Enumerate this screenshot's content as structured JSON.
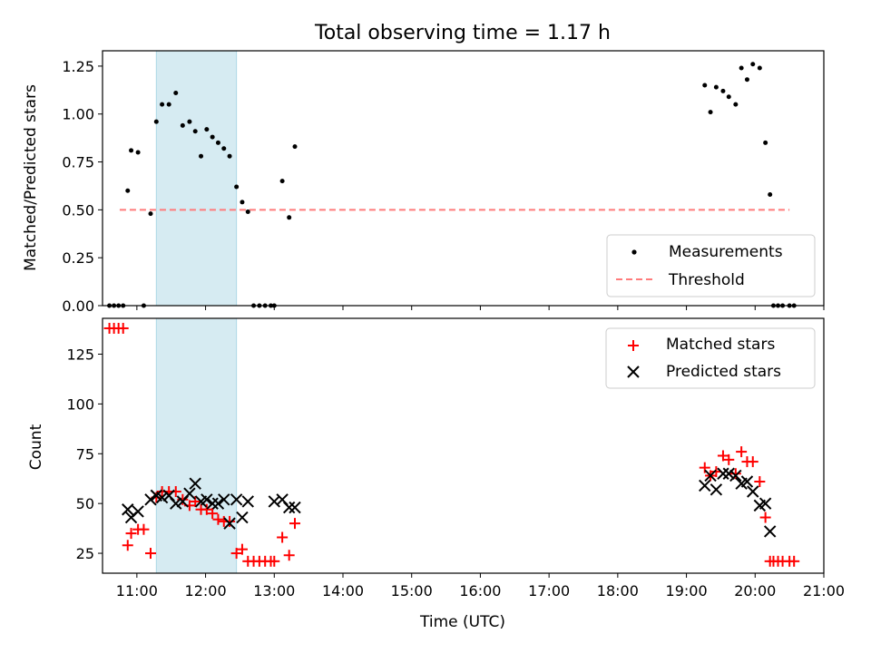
{
  "chart_data": [
    {
      "type": "scatter",
      "title": "Total observing time = 1.17 h",
      "ylabel": "Matched/Predicted stars",
      "xlim": [
        "10:30",
        "21:00"
      ],
      "ylim": [
        0,
        1.33
      ],
      "yticks": [
        "0.00",
        "0.25",
        "0.50",
        "0.75",
        "1.00",
        "1.25"
      ],
      "shaded_interval": [
        "11:17",
        "12:27"
      ],
      "legend_position": "lower-right",
      "series": [
        {
          "name": "Measurements",
          "marker": "dot",
          "color": "#000000",
          "x": [
            "10:36",
            "10:40",
            "10:44",
            "10:48",
            "10:52",
            "10:55",
            "11:01",
            "11:06",
            "11:12",
            "11:17",
            "11:22",
            "11:28",
            "11:34",
            "11:40",
            "11:46",
            "11:51",
            "11:56",
            "12:01",
            "12:06",
            "12:11",
            "12:16",
            "12:21",
            "12:27",
            "12:32",
            "12:37",
            "12:42",
            "12:47",
            "12:52",
            "12:57",
            "13:00",
            "13:07",
            "13:13",
            "13:18",
            "19:16",
            "19:21",
            "19:26",
            "19:32",
            "19:37",
            "19:43",
            "19:48",
            "19:53",
            "19:58",
            "20:04",
            "20:09",
            "20:13",
            "20:16",
            "20:20",
            "20:24",
            "20:30",
            "20:34"
          ],
          "y": [
            0.0,
            0.0,
            0.0,
            0.0,
            0.6,
            0.81,
            0.8,
            0.0,
            0.48,
            0.96,
            1.05,
            1.05,
            1.11,
            0.94,
            0.96,
            0.91,
            0.78,
            0.92,
            0.88,
            0.85,
            0.82,
            0.78,
            0.62,
            0.54,
            0.49,
            0.0,
            0.0,
            0.0,
            0.0,
            0.0,
            0.65,
            0.46,
            0.83,
            1.15,
            1.01,
            1.14,
            1.12,
            1.09,
            1.05,
            1.24,
            1.18,
            1.26,
            1.24,
            0.85,
            0.58,
            0.0,
            0.0,
            0.0,
            0.0,
            0.0
          ]
        },
        {
          "name": "Threshold",
          "style": "dashed",
          "color": "#ff7b7b",
          "x": [
            "10:45",
            "20:30"
          ],
          "y": [
            0.5,
            0.5
          ]
        }
      ]
    },
    {
      "type": "scatter",
      "xlabel": "Time (UTC)",
      "ylabel": "Count",
      "xlim": [
        "10:30",
        "21:00"
      ],
      "ylim": [
        15,
        143
      ],
      "xticks": [
        "11:00",
        "12:00",
        "13:00",
        "14:00",
        "15:00",
        "16:00",
        "17:00",
        "18:00",
        "19:00",
        "20:00",
        "21:00"
      ],
      "yticks": [
        "25",
        "50",
        "75",
        "100",
        "125"
      ],
      "shaded_interval": [
        "11:17",
        "12:27"
      ],
      "legend_position": "upper-right",
      "series": [
        {
          "name": "Matched stars",
          "marker": "plus",
          "color": "#ff0000",
          "x": [
            "10:36",
            "10:40",
            "10:44",
            "10:48",
            "10:52",
            "10:55",
            "11:01",
            "11:06",
            "11:12",
            "11:17",
            "11:22",
            "11:28",
            "11:34",
            "11:40",
            "11:46",
            "11:51",
            "11:56",
            "12:01",
            "12:06",
            "12:11",
            "12:16",
            "12:21",
            "12:27",
            "12:32",
            "12:37",
            "12:42",
            "12:47",
            "12:52",
            "12:57",
            "13:00",
            "13:07",
            "13:13",
            "13:18",
            "19:16",
            "19:21",
            "19:26",
            "19:32",
            "19:37",
            "19:43",
            "19:48",
            "19:53",
            "19:58",
            "20:04",
            "20:09",
            "20:13",
            "20:16",
            "20:20",
            "20:24",
            "20:30",
            "20:34"
          ],
          "y": [
            138,
            138,
            138,
            138,
            29,
            35,
            37,
            37,
            25,
            53,
            56,
            56,
            56,
            52,
            49,
            51,
            47,
            47,
            45,
            42,
            41,
            41,
            25,
            27,
            21,
            21,
            21,
            21,
            21,
            21,
            33,
            24,
            40,
            68,
            64,
            66,
            74,
            72,
            65,
            76,
            71,
            71,
            61,
            43,
            21,
            21,
            21,
            21,
            21,
            21
          ]
        },
        {
          "name": "Predicted stars",
          "marker": "x",
          "color": "#000000",
          "x": [
            "10:52",
            "10:55",
            "11:01",
            "11:12",
            "11:17",
            "11:22",
            "11:28",
            "11:34",
            "11:40",
            "11:46",
            "11:51",
            "11:56",
            "12:01",
            "12:06",
            "12:11",
            "12:16",
            "12:21",
            "12:27",
            "12:32",
            "12:37",
            "13:00",
            "13:07",
            "13:13",
            "13:18",
            "19:16",
            "19:21",
            "19:26",
            "19:32",
            "19:37",
            "19:43",
            "19:48",
            "19:53",
            "19:58",
            "20:04",
            "20:09",
            "20:13"
          ],
          "y": [
            47,
            43,
            46,
            52,
            54,
            53,
            54,
            50,
            51,
            55,
            60,
            51,
            52,
            50,
            50,
            52,
            40,
            52,
            43,
            51,
            51,
            52,
            48,
            48,
            59,
            64,
            57,
            65,
            65,
            64,
            60,
            61,
            56,
            49,
            50,
            36
          ]
        }
      ]
    }
  ]
}
